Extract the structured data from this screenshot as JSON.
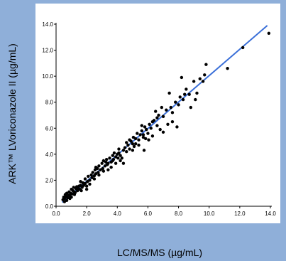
{
  "chart_data": {
    "type": "scatter",
    "xlabel": "LC/MS/MS (µg/mL)",
    "ylabel": "ARK™ LVoriconazole II (µg/mL)",
    "xlim": [
      0,
      14
    ],
    "ylim": [
      0,
      14
    ],
    "xticks": [
      "0.0",
      "2.0",
      "4.0",
      "6.0",
      "8.0",
      "10.0",
      "12.0",
      "14.0"
    ],
    "yticks": [
      "0.0",
      "2.0",
      "4.0",
      "6.0",
      "8.0",
      "10.0",
      "12.0",
      "14.0"
    ],
    "grid": false,
    "point_color": "#000000",
    "line_color": "#3a6fd8",
    "regression_line": {
      "x": [
        0.4,
        13.8
      ],
      "y": [
        0.3,
        13.9
      ]
    },
    "points": [
      [
        0.45,
        0.5
      ],
      [
        0.5,
        0.7
      ],
      [
        0.55,
        0.6
      ],
      [
        0.6,
        0.9
      ],
      [
        0.65,
        0.75
      ],
      [
        0.7,
        1.0
      ],
      [
        0.75,
        0.65
      ],
      [
        0.8,
        0.85
      ],
      [
        0.85,
        1.1
      ],
      [
        0.9,
        0.8
      ],
      [
        0.95,
        1.0
      ],
      [
        1.0,
        1.3
      ],
      [
        1.05,
        0.95
      ],
      [
        1.1,
        1.2
      ],
      [
        1.15,
        1.45
      ],
      [
        1.2,
        1.1
      ],
      [
        1.3,
        1.35
      ],
      [
        1.35,
        1.5
      ],
      [
        1.4,
        1.2
      ],
      [
        1.5,
        1.55
      ],
      [
        1.55,
        1.3
      ],
      [
        1.6,
        1.6
      ],
      [
        1.7,
        1.45
      ],
      [
        1.75,
        1.8
      ],
      [
        1.8,
        1.6
      ],
      [
        1.9,
        1.75
      ],
      [
        2.0,
        1.55
      ],
      [
        2.05,
        1.9
      ],
      [
        2.1,
        2.3
      ],
      [
        2.2,
        2.0
      ],
      [
        2.3,
        2.4
      ],
      [
        2.35,
        2.2
      ],
      [
        2.4,
        2.6
      ],
      [
        2.5,
        2.35
      ],
      [
        2.55,
        2.8
      ],
      [
        2.6,
        2.5
      ],
      [
        2.7,
        2.9
      ],
      [
        2.75,
        2.6
      ],
      [
        2.8,
        3.1
      ],
      [
        2.9,
        2.8
      ],
      [
        3.0,
        3.3
      ],
      [
        3.05,
        2.9
      ],
      [
        3.1,
        3.5
      ],
      [
        3.2,
        3.1
      ],
      [
        3.3,
        3.6
      ],
      [
        3.35,
        3.2
      ],
      [
        3.4,
        2.8
      ],
      [
        3.5,
        3.7
      ],
      [
        3.6,
        3.4
      ],
      [
        3.7,
        3.9
      ],
      [
        3.75,
        3.6
      ],
      [
        3.8,
        4.1
      ],
      [
        3.9,
        3.8
      ],
      [
        4.0,
        4.0
      ],
      [
        4.05,
        3.7
      ],
      [
        4.1,
        4.1
      ],
      [
        4.2,
        3.9
      ],
      [
        4.3,
        3.7
      ],
      [
        4.4,
        4.3
      ],
      [
        4.5,
        4.5
      ],
      [
        4.6,
        4.2
      ],
      [
        4.7,
        4.7
      ],
      [
        4.8,
        4.4
      ],
      [
        4.9,
        5.0
      ],
      [
        5.0,
        4.8
      ],
      [
        5.05,
        5.3
      ],
      [
        5.1,
        4.6
      ],
      [
        5.2,
        5.2
      ],
      [
        5.3,
        5.6
      ],
      [
        5.4,
        5.1
      ],
      [
        5.5,
        5.5
      ],
      [
        5.6,
        5.8
      ],
      [
        5.7,
        5.3
      ],
      [
        5.75,
        4.3
      ],
      [
        5.8,
        6.1
      ],
      [
        5.9,
        5.9
      ],
      [
        6.0,
        5.6
      ],
      [
        6.1,
        6.3
      ],
      [
        6.2,
        6.0
      ],
      [
        6.3,
        5.4
      ],
      [
        6.4,
        6.6
      ],
      [
        6.5,
        7.3
      ],
      [
        6.6,
        6.2
      ],
      [
        6.7,
        7.0
      ],
      [
        6.8,
        5.9
      ],
      [
        6.9,
        7.6
      ],
      [
        7.0,
        6.9
      ],
      [
        7.2,
        7.4
      ],
      [
        7.3,
        6.3
      ],
      [
        7.4,
        8.7
      ],
      [
        7.5,
        7.6
      ],
      [
        7.6,
        7.2
      ],
      [
        7.8,
        8.0
      ],
      [
        8.0,
        7.8
      ],
      [
        8.1,
        8.4
      ],
      [
        8.2,
        9.9
      ],
      [
        8.3,
        8.2
      ],
      [
        8.5,
        9.0
      ],
      [
        8.7,
        8.6
      ],
      [
        8.8,
        7.6
      ],
      [
        9.0,
        9.6
      ],
      [
        9.2,
        8.7
      ],
      [
        9.4,
        9.8
      ],
      [
        9.6,
        9.6
      ],
      [
        9.7,
        10.1
      ],
      [
        9.8,
        10.9
      ],
      [
        11.2,
        10.6
      ],
      [
        12.2,
        12.2
      ],
      [
        13.9,
        13.3
      ],
      [
        0.55,
        0.35
      ],
      [
        0.7,
        0.45
      ],
      [
        0.9,
        0.6
      ],
      [
        1.2,
        0.9
      ],
      [
        1.6,
        1.9
      ],
      [
        1.9,
        2.1
      ],
      [
        2.2,
        1.7
      ],
      [
        2.5,
        2.1
      ],
      [
        2.8,
        2.4
      ],
      [
        3.1,
        2.7
      ],
      [
        3.4,
        3.3
      ],
      [
        3.6,
        3.0
      ],
      [
        3.9,
        3.3
      ],
      [
        4.2,
        3.5
      ],
      [
        4.4,
        3.3
      ],
      [
        4.6,
        4.9
      ],
      [
        4.8,
        5.1
      ],
      [
        5.0,
        4.3
      ],
      [
        5.2,
        4.8
      ],
      [
        5.4,
        4.7
      ],
      [
        5.6,
        6.2
      ],
      [
        5.7,
        5.5
      ],
      [
        5.85,
        5.2
      ],
      [
        6.05,
        5.1
      ],
      [
        6.3,
        6.5
      ],
      [
        6.6,
        6.8
      ],
      [
        7.0,
        5.7
      ],
      [
        7.6,
        6.5
      ],
      [
        7.9,
        6.1
      ],
      [
        8.4,
        8.6
      ],
      [
        9.1,
        8.2
      ],
      [
        1.0,
        0.7
      ],
      [
        1.25,
        1.05
      ],
      [
        1.45,
        1.35
      ],
      [
        1.65,
        1.2
      ],
      [
        2.0,
        1.3
      ],
      [
        2.6,
        3.0
      ],
      [
        3.25,
        3.4
      ],
      [
        3.7,
        3.5
      ],
      [
        4.1,
        4.4
      ]
    ]
  }
}
